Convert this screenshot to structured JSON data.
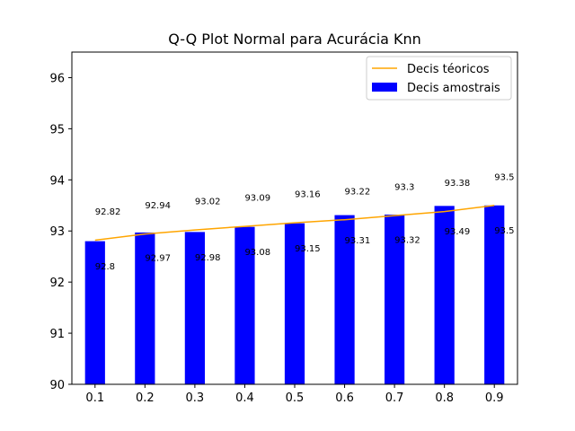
{
  "chart_data": {
    "type": "bar",
    "title": "Q-Q Plot Normal para Acurácia Knn",
    "xlabel": "",
    "ylabel": "",
    "categories": [
      "0.1",
      "0.2",
      "0.3",
      "0.4",
      "0.5",
      "0.6",
      "0.7",
      "0.8",
      "0.9"
    ],
    "x": [
      0.1,
      0.2,
      0.3,
      0.4,
      0.5,
      0.6,
      0.7,
      0.8,
      0.9
    ],
    "ylim": [
      90,
      96.5
    ],
    "yticks": [
      "90",
      "91",
      "92",
      "93",
      "94",
      "95",
      "96"
    ],
    "ytick_values": [
      90,
      91,
      92,
      93,
      94,
      95,
      96
    ],
    "grid": false,
    "legend_position": "top-right",
    "series": [
      {
        "name": "Decis téoricos",
        "kind": "line",
        "color": "#ffa500",
        "values": [
          92.82,
          92.94,
          93.02,
          93.09,
          93.16,
          93.22,
          93.3,
          93.38,
          93.5
        ],
        "labels": [
          "92.82",
          "92.94",
          "93.02",
          "93.09",
          "93.16",
          "93.22",
          "93.3",
          "93.38",
          "93.5"
        ]
      },
      {
        "name": "Decis amostrais",
        "kind": "bar",
        "color": "#0000ff",
        "values": [
          92.8,
          92.97,
          92.98,
          93.08,
          93.15,
          93.31,
          93.32,
          93.49,
          93.5
        ],
        "labels": [
          "92.8",
          "92.97",
          "92.98",
          "93.08",
          "93.15",
          "93.31",
          "93.32",
          "93.49",
          "93.5"
        ]
      }
    ]
  }
}
